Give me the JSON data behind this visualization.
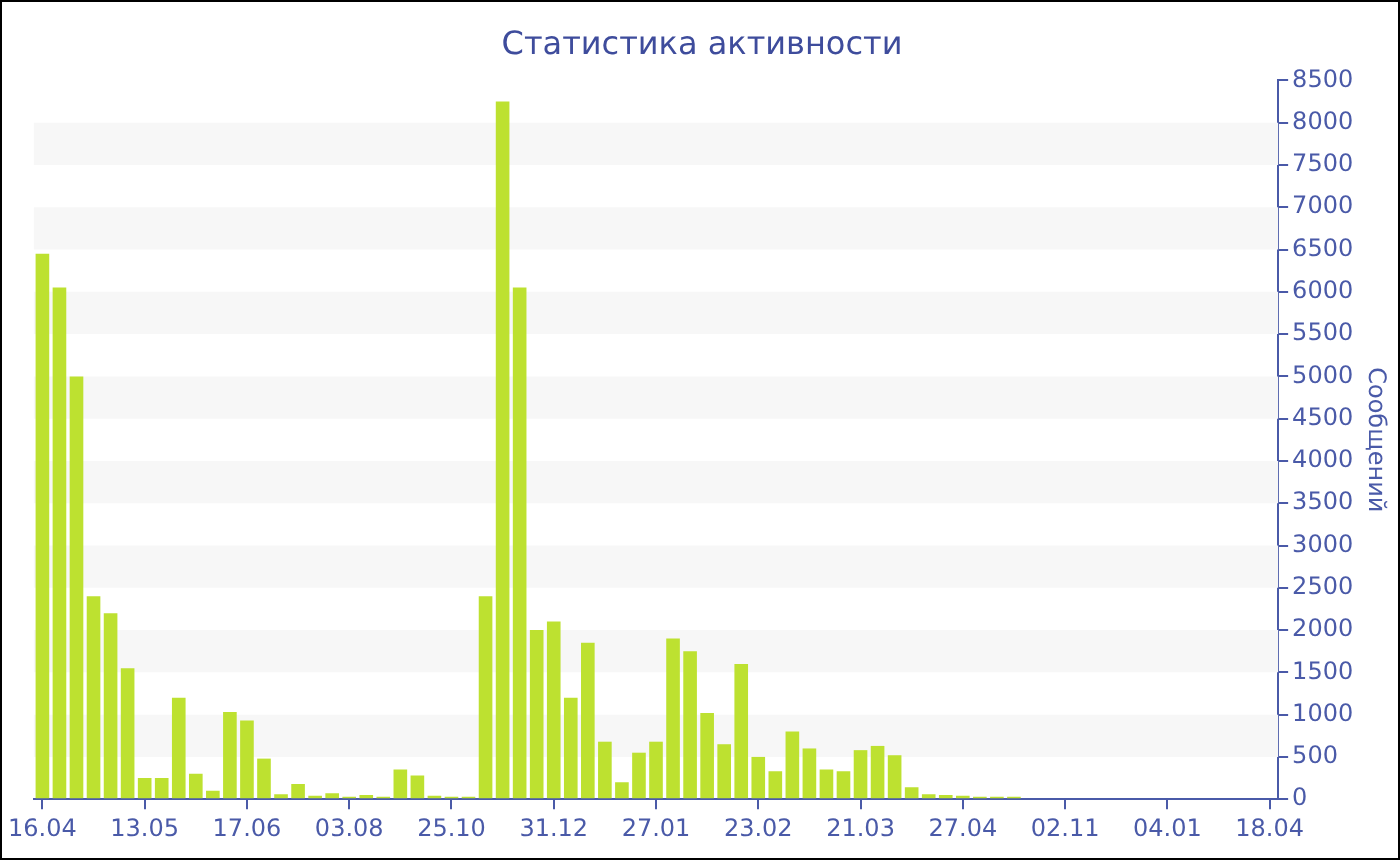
{
  "chart_data": {
    "type": "bar",
    "title": "Статистика активности",
    "ylabel": "Сообщений",
    "categories": [
      "16.04",
      null,
      null,
      null,
      null,
      null,
      "13.05",
      null,
      null,
      null,
      null,
      null,
      "17.06",
      null,
      null,
      null,
      null,
      null,
      "03.08",
      null,
      null,
      null,
      null,
      null,
      "25.10",
      null,
      null,
      null,
      null,
      null,
      "31.12",
      null,
      null,
      null,
      null,
      null,
      "27.01",
      null,
      null,
      null,
      null,
      null,
      "23.02",
      null,
      null,
      null,
      null,
      null,
      "21.03",
      null,
      null,
      null,
      null,
      null,
      "27.04",
      null,
      null,
      null,
      null,
      null,
      "02.11",
      null,
      null,
      null,
      null,
      null,
      "04.01",
      null,
      null,
      null,
      null,
      null,
      "18.04"
    ],
    "values": [
      6450,
      6050,
      5000,
      2400,
      2200,
      1550,
      250,
      250,
      1200,
      300,
      100,
      1030,
      930,
      480,
      60,
      180,
      40,
      70,
      30,
      50,
      30,
      350,
      280,
      40,
      30,
      30,
      2400,
      8250,
      6050,
      2000,
      2100,
      1200,
      1850,
      680,
      200,
      550,
      680,
      1900,
      1750,
      1020,
      650,
      1600,
      500,
      330,
      800,
      600,
      350,
      330,
      580,
      630,
      520,
      140,
      60,
      50,
      40,
      30,
      30,
      30,
      10,
      10,
      10,
      10,
      10,
      10,
      10,
      10,
      10,
      10,
      10,
      10,
      10,
      10,
      10
    ],
    "color": "#bde130",
    "ylim": [
      0,
      8500
    ],
    "yticks": [
      0,
      500,
      1000,
      1500,
      2000,
      2500,
      3000,
      3500,
      4000,
      4500,
      5000,
      5500,
      6000,
      6500,
      7000,
      7500,
      8000,
      8500
    ],
    "legend": false
  }
}
